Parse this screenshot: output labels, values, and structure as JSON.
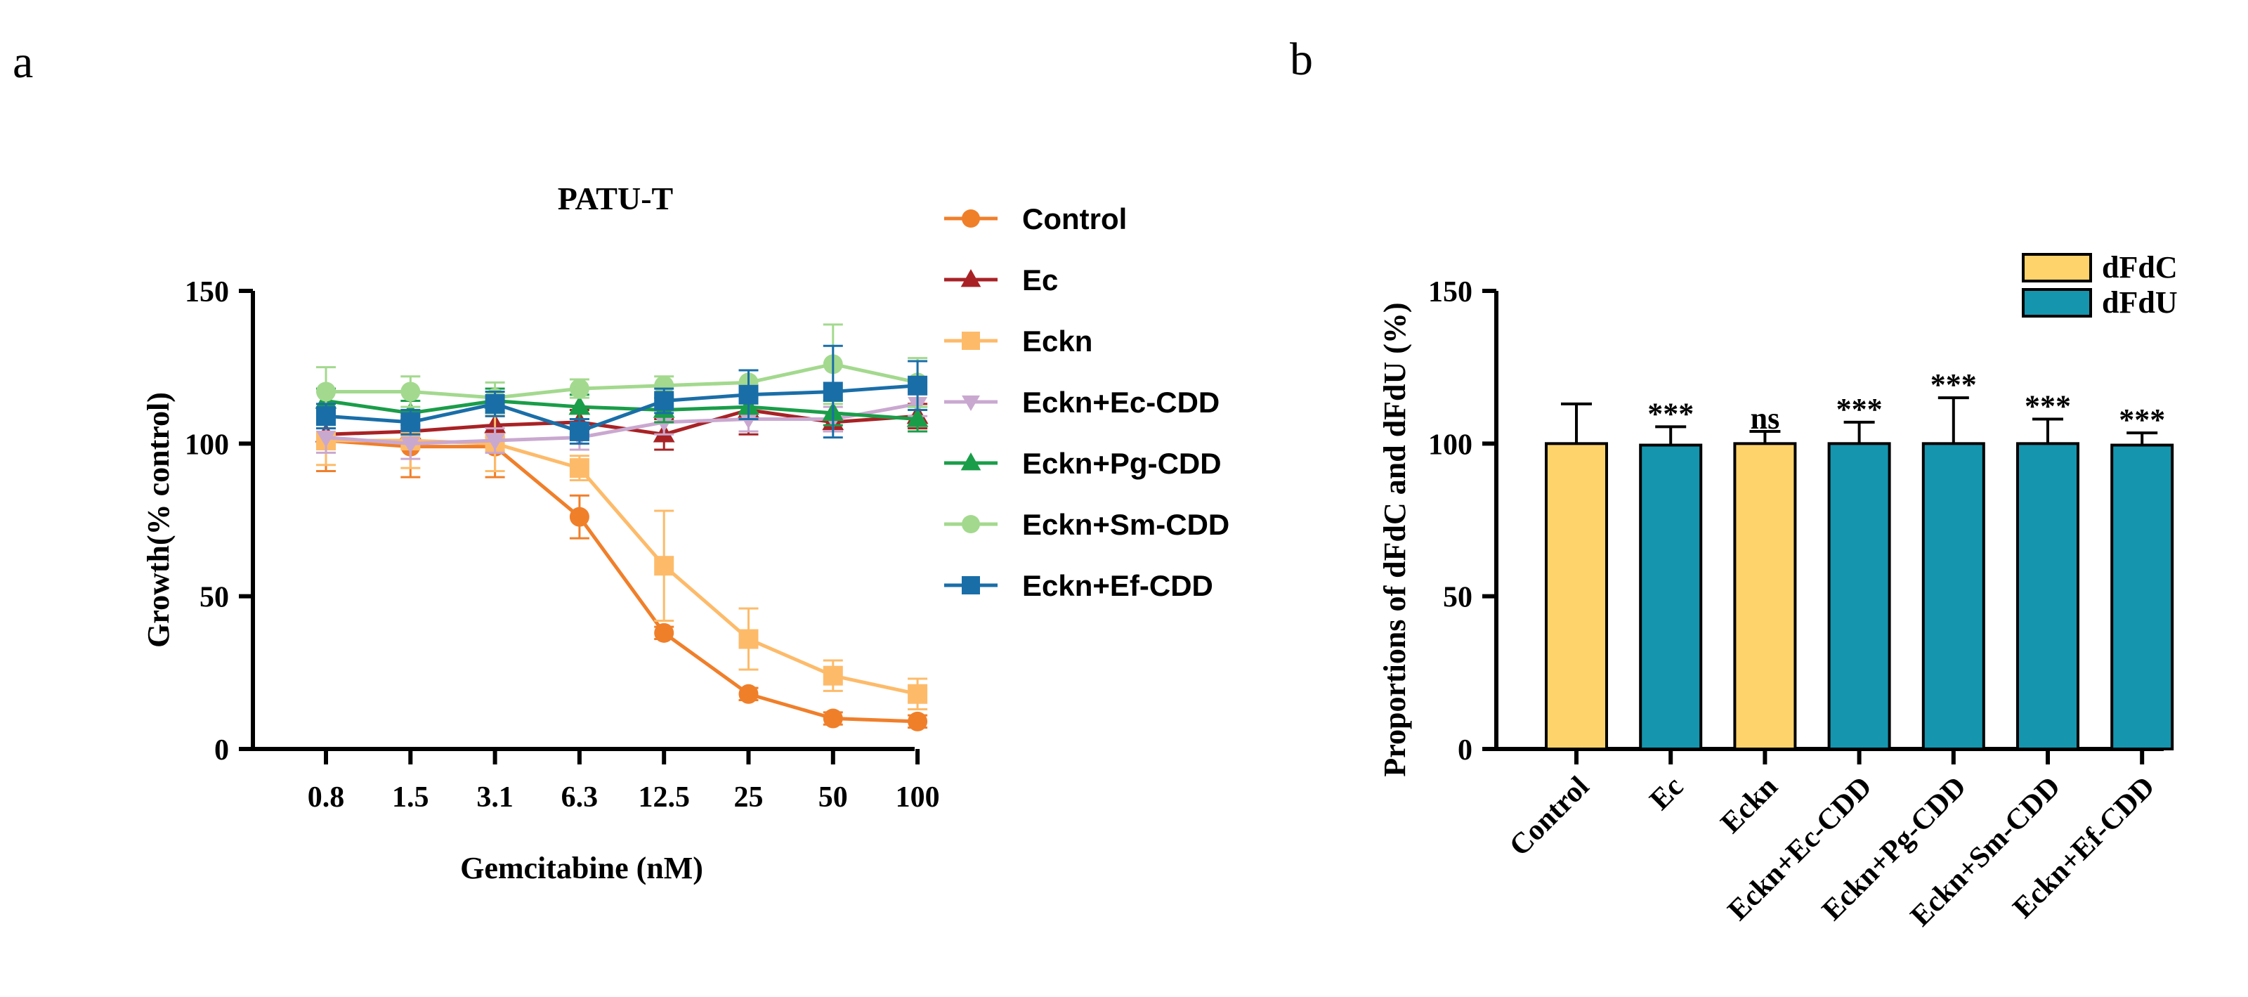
{
  "panels": {
    "a": "a",
    "b": "b"
  },
  "chart_data": [
    {
      "type": "line",
      "title": "PATU-T",
      "xlabel": "Gemcitabine (nM)",
      "ylabel": "Growth(% control)",
      "categories": [
        "0.8",
        "1.5",
        "3.1",
        "6.3",
        "12.5",
        "25",
        "50",
        "100"
      ],
      "ylim": [
        0,
        150
      ],
      "yticks": [
        0,
        50,
        100,
        150
      ],
      "series": [
        {
          "name": "Control",
          "color": "#F07F2A",
          "marker": "circle",
          "values": [
            101,
            99,
            99,
            76,
            38,
            18,
            10,
            9
          ],
          "errors": [
            10,
            10,
            10,
            7,
            2,
            2,
            2,
            2
          ]
        },
        {
          "name": "Ec",
          "color": "#A82225",
          "marker": "triangle-up",
          "values": [
            103,
            104,
            106,
            107,
            103,
            111,
            107,
            109
          ],
          "errors": [
            4,
            4,
            4,
            4,
            5,
            8,
            3,
            4
          ]
        },
        {
          "name": "Eckn",
          "color": "#FDBB6A",
          "marker": "square",
          "values": [
            101,
            101,
            100,
            92,
            60,
            36,
            24,
            18
          ],
          "errors": [
            8,
            9,
            9,
            4,
            18,
            10,
            5,
            5
          ]
        },
        {
          "name": "Eckn+Ec-CDD",
          "color": "#C9A8D0",
          "marker": "triangle-down",
          "values": [
            102,
            100,
            101,
            102,
            107,
            108,
            108,
            113
          ],
          "errors": [
            5,
            5,
            4,
            4,
            4,
            4,
            4,
            4
          ]
        },
        {
          "name": "Eckn+Pg-CDD",
          "color": "#1A9D49",
          "marker": "triangle-up",
          "values": [
            114,
            110,
            114,
            112,
            111,
            112,
            110,
            108
          ],
          "errors": [
            4,
            4,
            4,
            4,
            4,
            4,
            4,
            4
          ]
        },
        {
          "name": "Eckn+Sm-CDD",
          "color": "#A3D98E",
          "marker": "circle",
          "values": [
            117,
            117,
            115,
            118,
            119,
            120,
            126,
            120
          ],
          "errors": [
            8,
            5,
            5,
            3,
            3,
            4,
            13,
            8
          ]
        },
        {
          "name": "Eckn+Ef-CDD",
          "color": "#1A6EA8",
          "marker": "square",
          "values": [
            109,
            107,
            113,
            104,
            114,
            116,
            117,
            119
          ],
          "errors": [
            4,
            4,
            4,
            4,
            4,
            8,
            15,
            8
          ]
        }
      ]
    },
    {
      "type": "bar",
      "ylabel": "Proportions of dFdC and dFdU (%)",
      "categories": [
        "Control",
        "Ec",
        "Eckn",
        "Eckn+Ec-CDD",
        "Eckn+Pg-CDD",
        "Eckn+Sm-CDD",
        "Eckn+Ef-CDD"
      ],
      "ylim": [
        0,
        150
      ],
      "yticks": [
        0,
        50,
        100,
        150
      ],
      "legend": [
        {
          "name": "dFdC",
          "color": "#FFD36B"
        },
        {
          "name": "dFdU",
          "color": "#1595AE"
        }
      ],
      "values": [
        100,
        99.5,
        100,
        100,
        100,
        100,
        99.5
      ],
      "errors": [
        13,
        6,
        4,
        7,
        15,
        8,
        4
      ],
      "bar_series": [
        "dFdC",
        "dFdU",
        "dFdC",
        "dFdU",
        "dFdU",
        "dFdU",
        "dFdU"
      ],
      "significance": [
        "",
        "***",
        "ns",
        "***",
        "***",
        "***",
        "***"
      ]
    }
  ]
}
